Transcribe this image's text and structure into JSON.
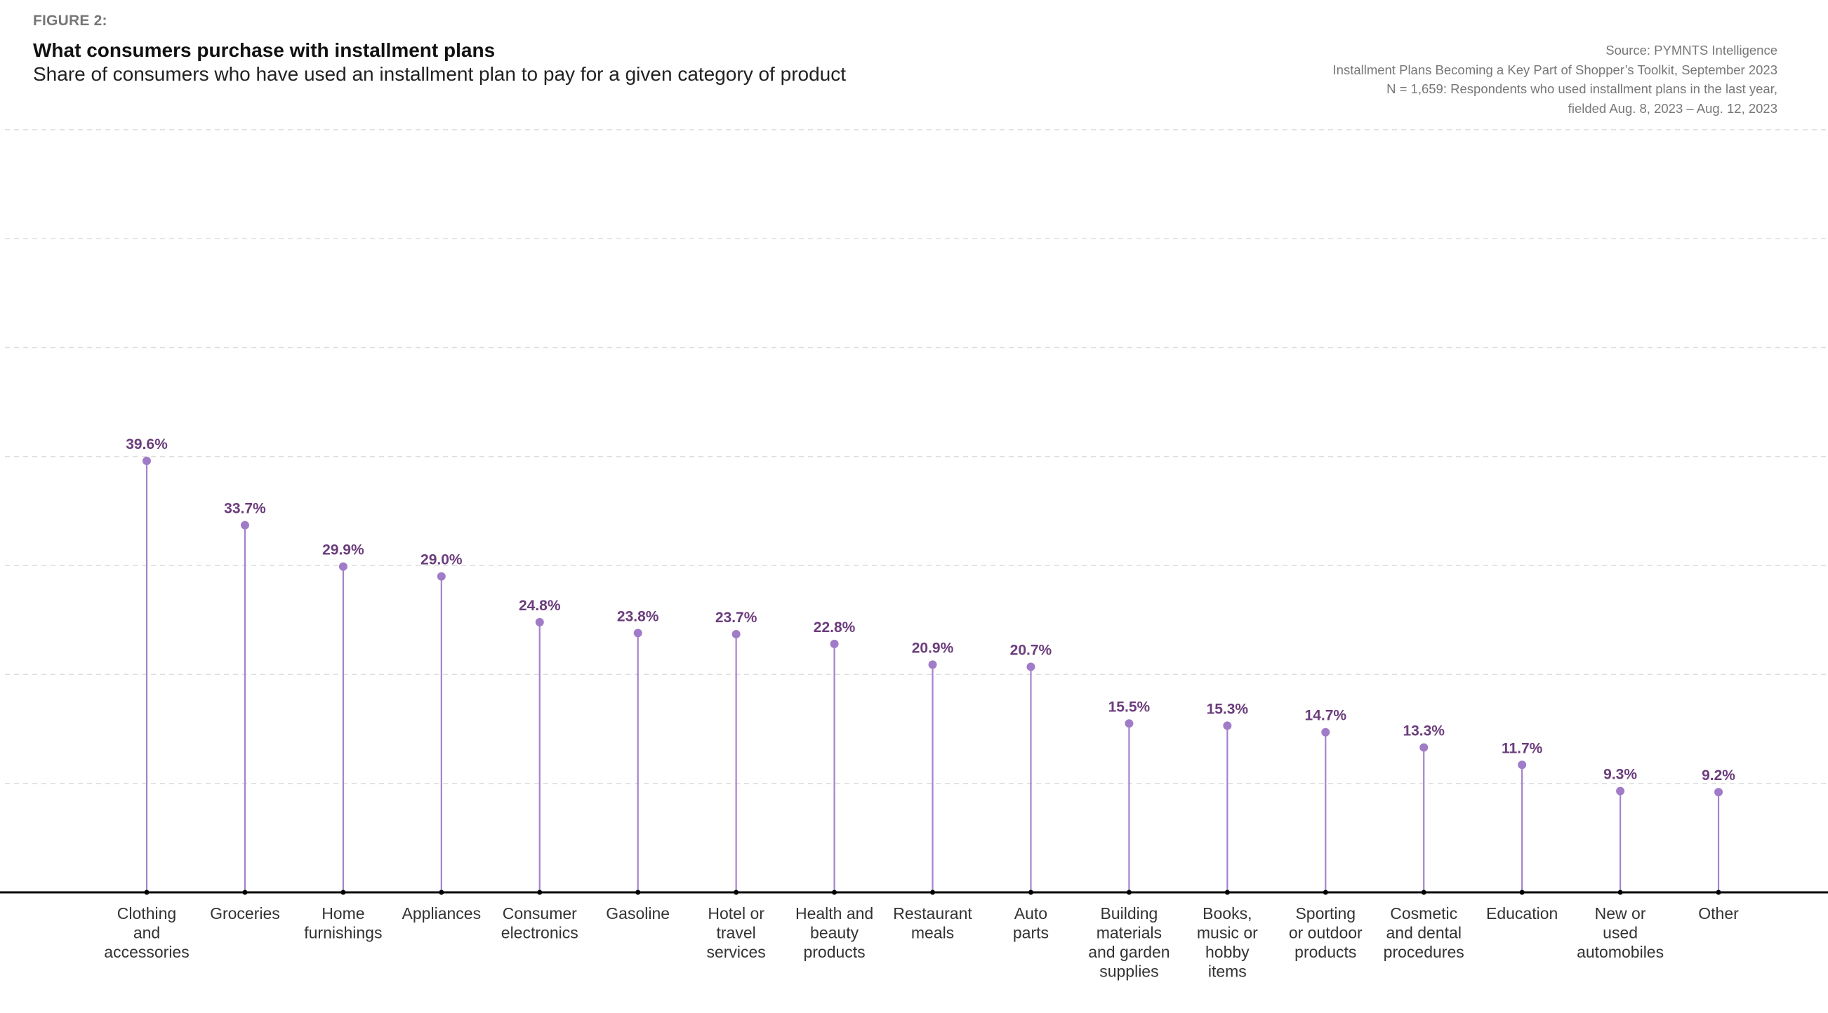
{
  "header": {
    "figure_label": "FIGURE 2:",
    "title": "What consumers purchase with installment plans",
    "subtitle": "Share of consumers who have used an installment plan to pay for a given category of product"
  },
  "source": {
    "lines": [
      "Source: PYMNTS Intelligence",
      "Installment Plans Becoming a Key Part of Shopper’s Toolkit, September 2023",
      "N = 1,659: Respondents who used installment plans in the last year,",
      "fielded Aug. 8, 2023 – Aug. 12, 2023"
    ]
  },
  "colors": {
    "stem": "#a583cc",
    "dot": "#a07cc8",
    "value_label": "#6b3d7c",
    "gridline": "#dddddd",
    "baseline": "#000000",
    "category_label": "#333333"
  },
  "chart_data": {
    "type": "lollipop",
    "title": "What consumers purchase with installment plans",
    "subtitle": "Share of consumers who have used an installment plan to pay for a given category of product",
    "xlabel": "",
    "ylabel": "",
    "ylim": [
      0,
      70
    ],
    "gridlines": [
      10,
      20,
      30,
      40,
      50,
      60,
      70
    ],
    "grid": true,
    "unit": "%",
    "categories": [
      [
        "Clothing",
        "and",
        "accessories"
      ],
      [
        "Groceries"
      ],
      [
        "Home",
        "furnishings"
      ],
      [
        "Appliances"
      ],
      [
        "Consumer",
        "electronics"
      ],
      [
        "Gasoline"
      ],
      [
        "Hotel or",
        "travel",
        "services"
      ],
      [
        "Health and",
        "beauty",
        "products"
      ],
      [
        "Restaurant",
        "meals"
      ],
      [
        "Auto",
        "parts"
      ],
      [
        "Building",
        "materials",
        "and garden",
        "supplies"
      ],
      [
        "Books,",
        "music or",
        "hobby",
        "items"
      ],
      [
        "Sporting",
        "or outdoor",
        "products"
      ],
      [
        "Cosmetic",
        "and dental",
        "procedures"
      ],
      [
        "Education"
      ],
      [
        "New or",
        "used",
        "automobiles"
      ],
      [
        "Other"
      ]
    ],
    "values": [
      39.6,
      33.7,
      29.9,
      29.0,
      24.8,
      23.8,
      23.7,
      22.8,
      20.9,
      20.7,
      15.5,
      15.3,
      14.7,
      13.3,
      11.7,
      9.3,
      9.2
    ],
    "value_labels": [
      "39.6%",
      "33.7%",
      "29.9%",
      "29.0%",
      "24.8%",
      "23.8%",
      "23.7%",
      "22.8%",
      "20.9%",
      "20.7%",
      "15.5%",
      "15.3%",
      "14.7%",
      "13.3%",
      "11.7%",
      "9.3%",
      "9.2%"
    ]
  }
}
